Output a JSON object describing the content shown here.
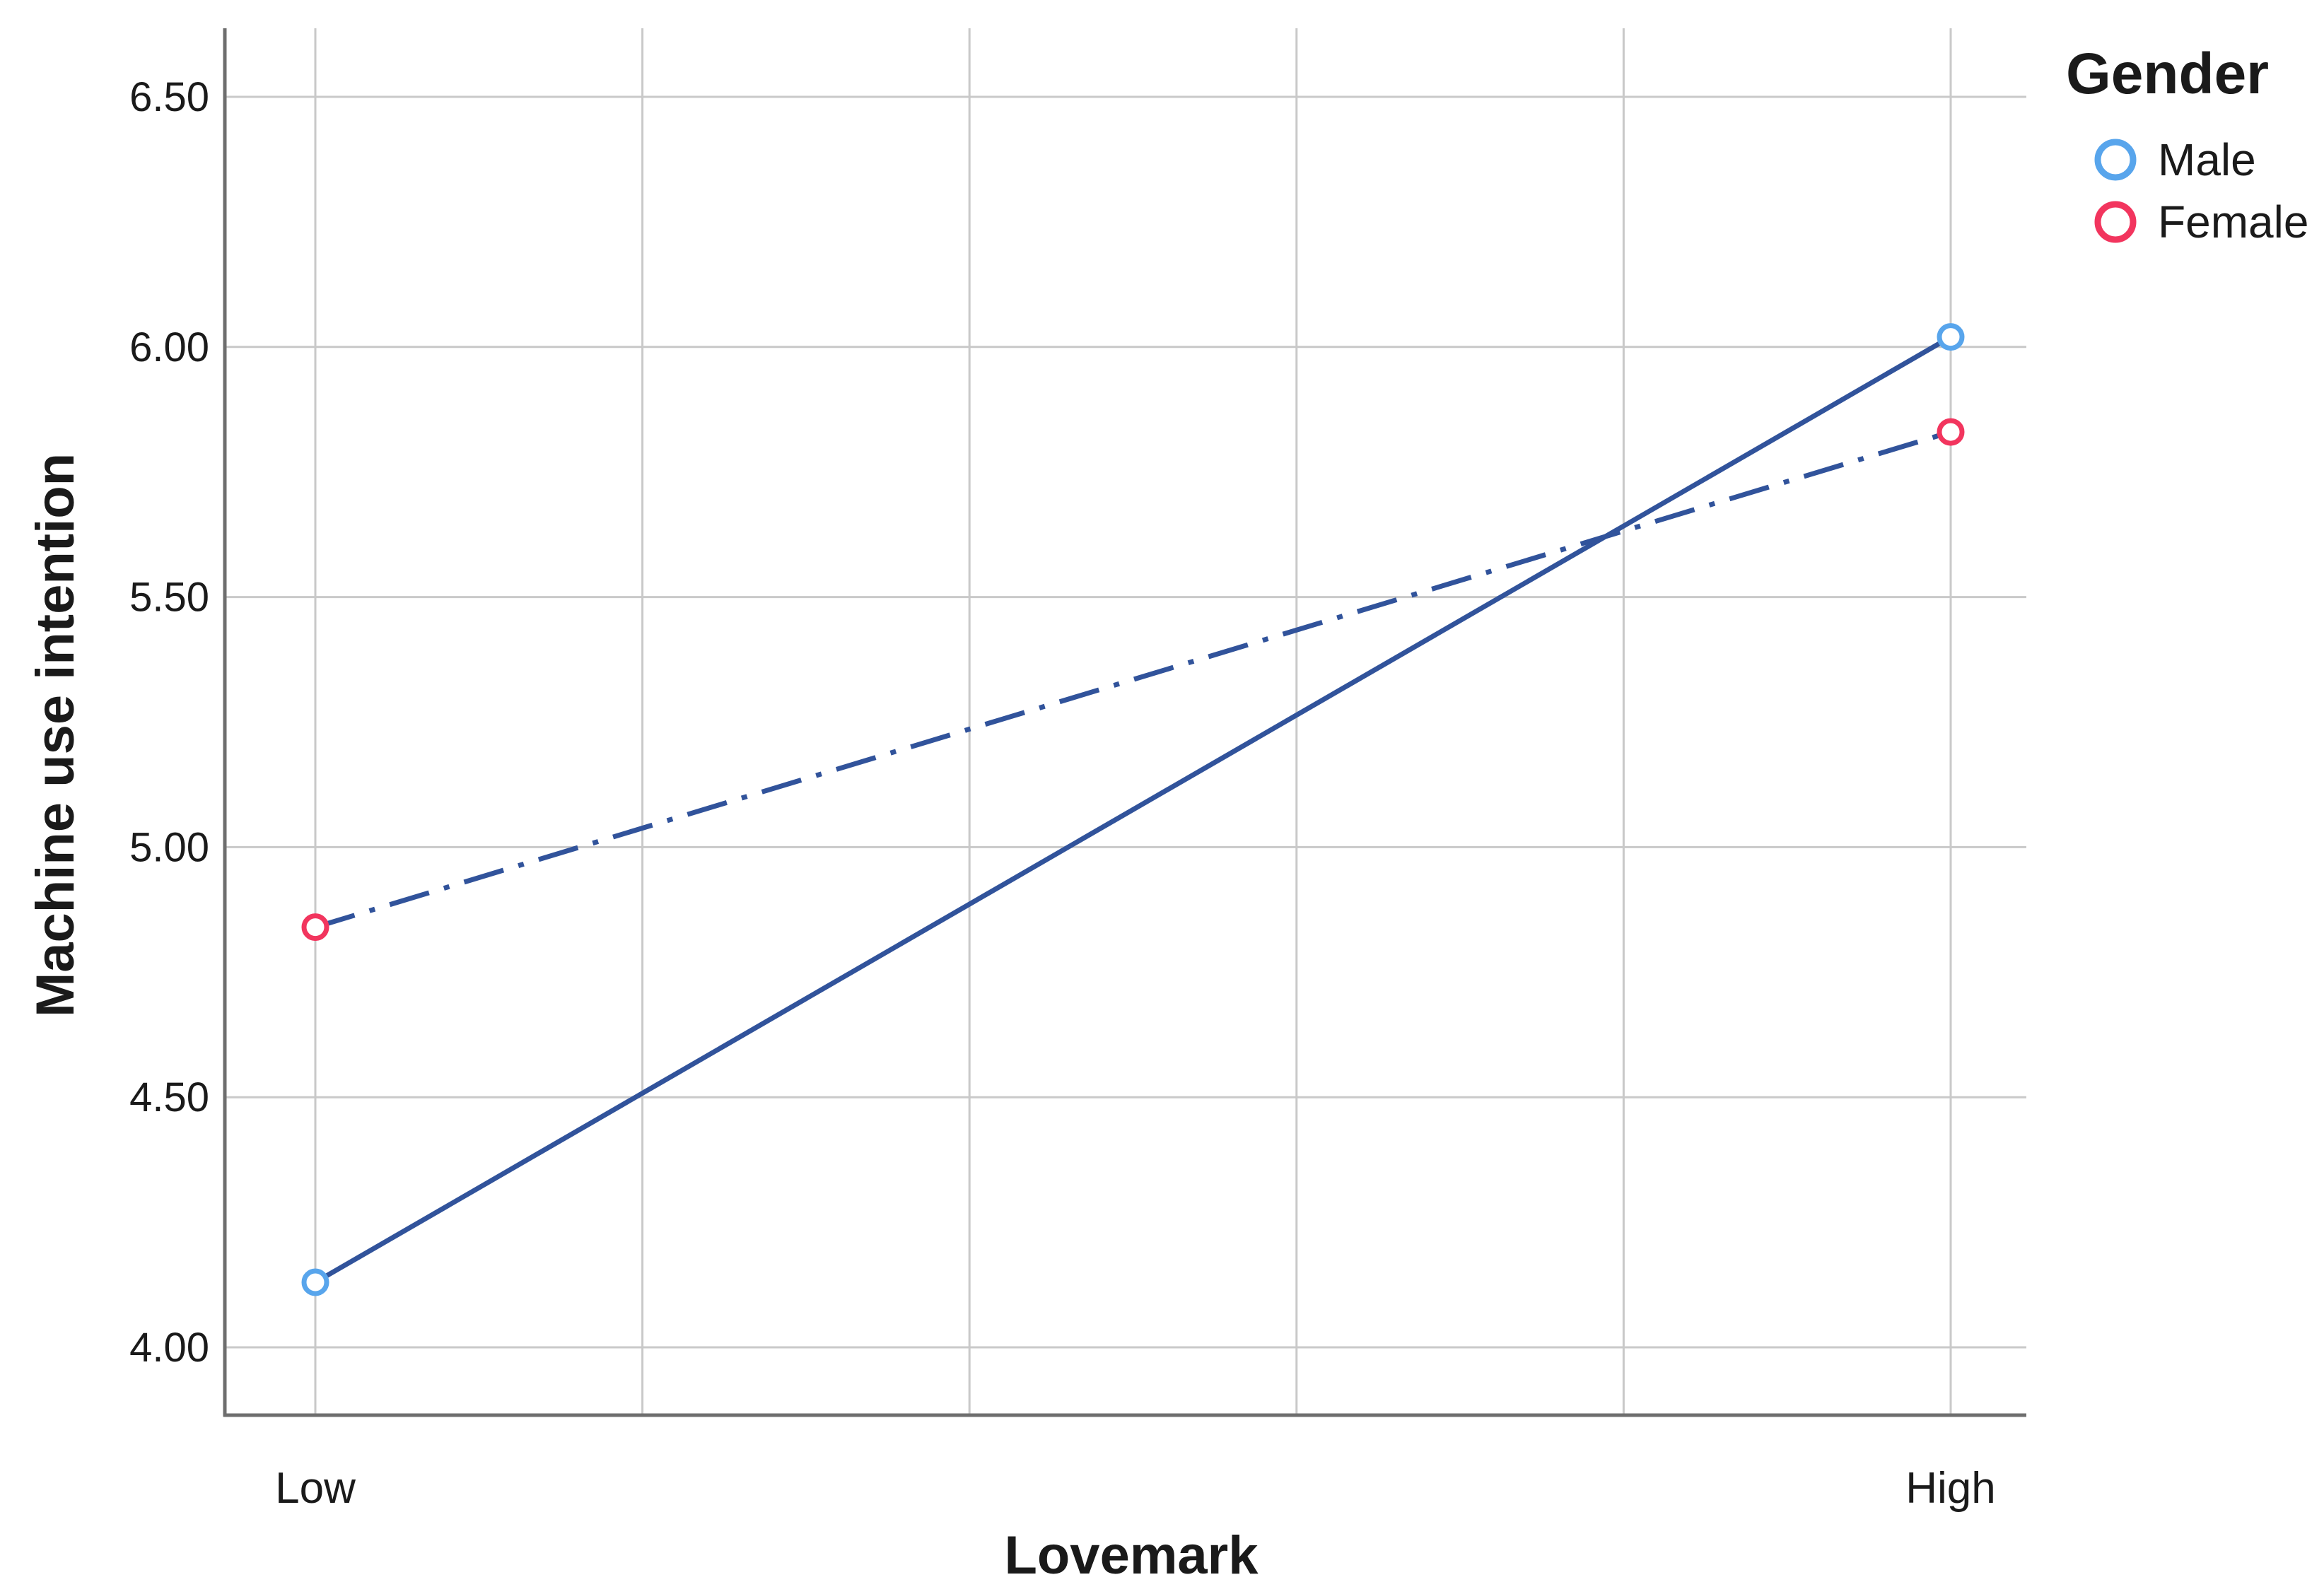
{
  "chart_data": {
    "type": "line",
    "title": "",
    "xlabel": "Lovemark",
    "ylabel": "Machine use intention",
    "categories": [
      "Low",
      "High"
    ],
    "series": [
      {
        "name": "Male",
        "values": [
          4.13,
          6.02
        ],
        "line_color": "#31539b",
        "line_style": "solid",
        "marker": "open-circle",
        "marker_color": "#58a5ec"
      },
      {
        "name": "Female",
        "values": [
          4.84,
          5.83
        ],
        "line_color": "#31539b",
        "line_style": "dash-dot",
        "marker": "open-circle",
        "marker_color": "#f2355e"
      }
    ],
    "y_ticks": [
      {
        "value": 6.5,
        "label": "6.50"
      },
      {
        "value": 6.0,
        "label": "6.00"
      },
      {
        "value": 5.5,
        "label": "5.50"
      },
      {
        "value": 5.0,
        "label": "5.00"
      },
      {
        "value": 4.5,
        "label": "4.50"
      },
      {
        "value": 4.0,
        "label": "4.00"
      }
    ],
    "ylim": [
      3.86,
      6.64
    ],
    "grid": true,
    "vertical_gridlines": 6,
    "legend": {
      "title": "Gender",
      "position": "top-right",
      "items": [
        {
          "label": "Male",
          "color": "#58a5ec"
        },
        {
          "label": "Female",
          "color": "#f2355e"
        }
      ]
    },
    "style_colors": {
      "axis_line": "#6e6e6e",
      "gridline": "#c9c9c9",
      "text": "#1a1a1a",
      "marker_fill": "#ffffff"
    }
  }
}
